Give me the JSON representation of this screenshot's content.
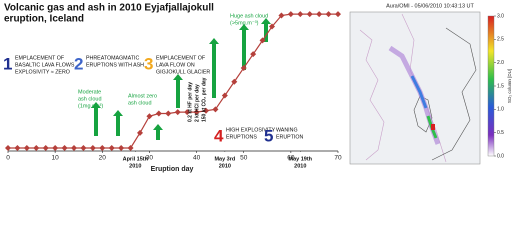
{
  "chart_data": {
    "type": "line",
    "title_lines": [
      "Volcanic gas and ash in 2010 Eyjafjallajokull",
      "eruption, Iceland"
    ],
    "x_label": "Eruption day",
    "x": [
      0,
      2,
      4,
      6,
      8,
      10,
      12,
      14,
      16,
      18,
      20,
      22,
      24,
      26,
      28,
      30,
      32,
      34,
      36,
      38,
      40,
      42,
      44,
      46,
      48,
      50,
      52,
      54,
      56,
      58,
      60,
      62,
      64,
      66,
      68,
      70
    ],
    "values": [
      0,
      0,
      0,
      0,
      0,
      0,
      0,
      0,
      0,
      0,
      0,
      0,
      0,
      0,
      1.1,
      2.3,
      2.5,
      2.5,
      2.6,
      2.6,
      2.6,
      2.7,
      2.8,
      3.8,
      4.8,
      5.8,
      6.8,
      7.8,
      8.8,
      9.6,
      9.7,
      9.7,
      9.7,
      9.7,
      9.7,
      9.7
    ],
    "color": "#b5403b",
    "xlim": [
      0,
      70
    ],
    "xticks": [
      0,
      10,
      20,
      30,
      40,
      50,
      60,
      70
    ],
    "ylim": [
      0,
      10
    ],
    "date_labels": [
      {
        "x": 27,
        "lines": [
          "April 15th",
          "2010"
        ]
      },
      {
        "x": 46,
        "lines": [
          "May 3rd",
          "2010"
        ]
      },
      {
        "x": 62,
        "lines": [
          "May 19th",
          "2010"
        ]
      }
    ],
    "phases": [
      {
        "number": "1",
        "color": "#1f2f8f",
        "lines": [
          "EMPLACEMENT OF",
          "BASALTIC LAVA FLOWS",
          "EXPLOSIVITY ≈ ZERO"
        ]
      },
      {
        "number": "2",
        "color": "#3d64c9",
        "lines": [
          "PHREATOMAGMATIC",
          "ERUPTIONS WITH ASH"
        ]
      },
      {
        "number": "3",
        "color": "#f2a81d",
        "lines": [
          "EMPLACEMENT OF",
          "LAVA FLOW ON",
          "GIGJOKULL GLACIER"
        ]
      },
      {
        "number": "4",
        "color": "#d42020",
        "lines": [
          "HIGH EXPLOSIVITY",
          "ERUPTIONS"
        ]
      },
      {
        "number": "5",
        "color": "#1f2f8f",
        "lines": [
          "WANING",
          "ERUPTION"
        ]
      }
    ],
    "notes": [
      {
        "lines": [
          "Moderate",
          "ash cloud",
          "(1mg.m⁻³)"
        ]
      },
      {
        "lines": [
          "Almost zero",
          "ash cloud"
        ]
      },
      {
        "lines": [
          "Huge ash cloud",
          "(>5mg.m⁻³)"
        ]
      }
    ],
    "gas_lines": [
      "0.2 kt HF per day",
      "2 kt HCl per day",
      "150 kt CO₂ per day"
    ]
  },
  "map": {
    "title": "Aura/OMI - 05/06/2010 10:43:13 UT",
    "colorbar_label": "SO₂ column [DU]",
    "colorbar_lim": [
      0,
      3
    ],
    "colorbar_ticks": [
      {
        "value": 0,
        "label": "0.0"
      },
      {
        "value": 0.5,
        "label": "0.5"
      },
      {
        "value": 1,
        "label": "1.0"
      },
      {
        "value": 1.5,
        "label": "1.5"
      },
      {
        "value": 2,
        "label": "2.0"
      },
      {
        "value": 2.5,
        "label": "2.5"
      },
      {
        "value": 3,
        "label": "3.0"
      }
    ]
  }
}
